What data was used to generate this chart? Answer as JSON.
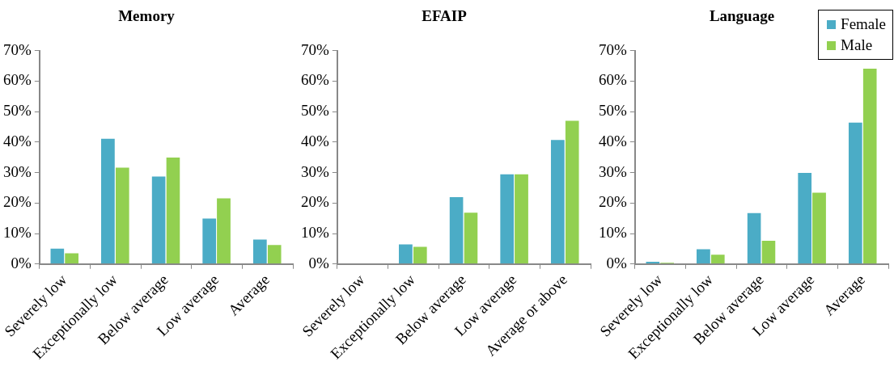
{
  "chart_data": [
    {
      "type": "bar",
      "title": "Memory",
      "categories": [
        "Severely low",
        "Exceptionally low",
        "Below average",
        "Low average",
        "Average"
      ],
      "series": [
        {
          "color": "#4bacc6",
          "values": [
            5.3,
            41.4,
            29.0,
            15.2,
            8.3
          ]
        },
        {
          "color": "#92d050",
          "values": [
            3.8,
            31.9,
            35.2,
            21.8,
            6.5
          ]
        }
      ],
      "ylim": [
        0,
        70
      ],
      "yticks": [
        {
          "value": 0,
          "label": "0%"
        },
        {
          "value": 10,
          "label": "10%"
        },
        {
          "value": 20,
          "label": "20%"
        },
        {
          "value": 30,
          "label": "30%"
        },
        {
          "value": 40,
          "label": "40%"
        },
        {
          "value": 50,
          "label": "50%"
        },
        {
          "value": 60,
          "label": "60%"
        },
        {
          "value": 70,
          "label": "70%"
        }
      ],
      "grid": false,
      "legend": false
    },
    {
      "type": "bar",
      "title": "EFAIP",
      "categories": [
        "Severely low",
        "Exceptionally low",
        "Below average",
        "Low average",
        "Average or above"
      ],
      "series": [
        {
          "color": "#4bacc6",
          "values": [
            0,
            6.7,
            22.2,
            29.7,
            41.0
          ]
        },
        {
          "color": "#92d050",
          "values": [
            0,
            5.9,
            17.1,
            29.7,
            47.3
          ]
        }
      ],
      "ylim": [
        0,
        70
      ],
      "yticks": [
        {
          "value": 0,
          "label": "0%"
        },
        {
          "value": 10,
          "label": "10%"
        },
        {
          "value": 20,
          "label": "20%"
        },
        {
          "value": 30,
          "label": "30%"
        },
        {
          "value": 40,
          "label": "40%"
        },
        {
          "value": 50,
          "label": "50%"
        },
        {
          "value": 60,
          "label": "60%"
        },
        {
          "value": 70,
          "label": "70%"
        }
      ],
      "grid": false,
      "legend": false
    },
    {
      "type": "bar",
      "title": "Language",
      "categories": [
        "Severely low",
        "Exceptionally low",
        "Below average",
        "Low average",
        "Average"
      ],
      "series": [
        {
          "name": "Female",
          "color": "#4bacc6",
          "values": [
            1.0,
            5.1,
            17.0,
            30.2,
            46.7
          ]
        },
        {
          "name": "Male",
          "color": "#92d050",
          "values": [
            0.6,
            3.3,
            7.9,
            23.7,
            64.4
          ]
        }
      ],
      "ylim": [
        0,
        70
      ],
      "yticks": [
        {
          "value": 0,
          "label": "0%"
        },
        {
          "value": 10,
          "label": "10%"
        },
        {
          "value": 20,
          "label": "20%"
        },
        {
          "value": 30,
          "label": "30%"
        },
        {
          "value": 40,
          "label": "40%"
        },
        {
          "value": 50,
          "label": "50%"
        },
        {
          "value": 60,
          "label": "60%"
        },
        {
          "value": 70,
          "label": "70%"
        }
      ],
      "grid": false,
      "legend": "top right"
    }
  ]
}
